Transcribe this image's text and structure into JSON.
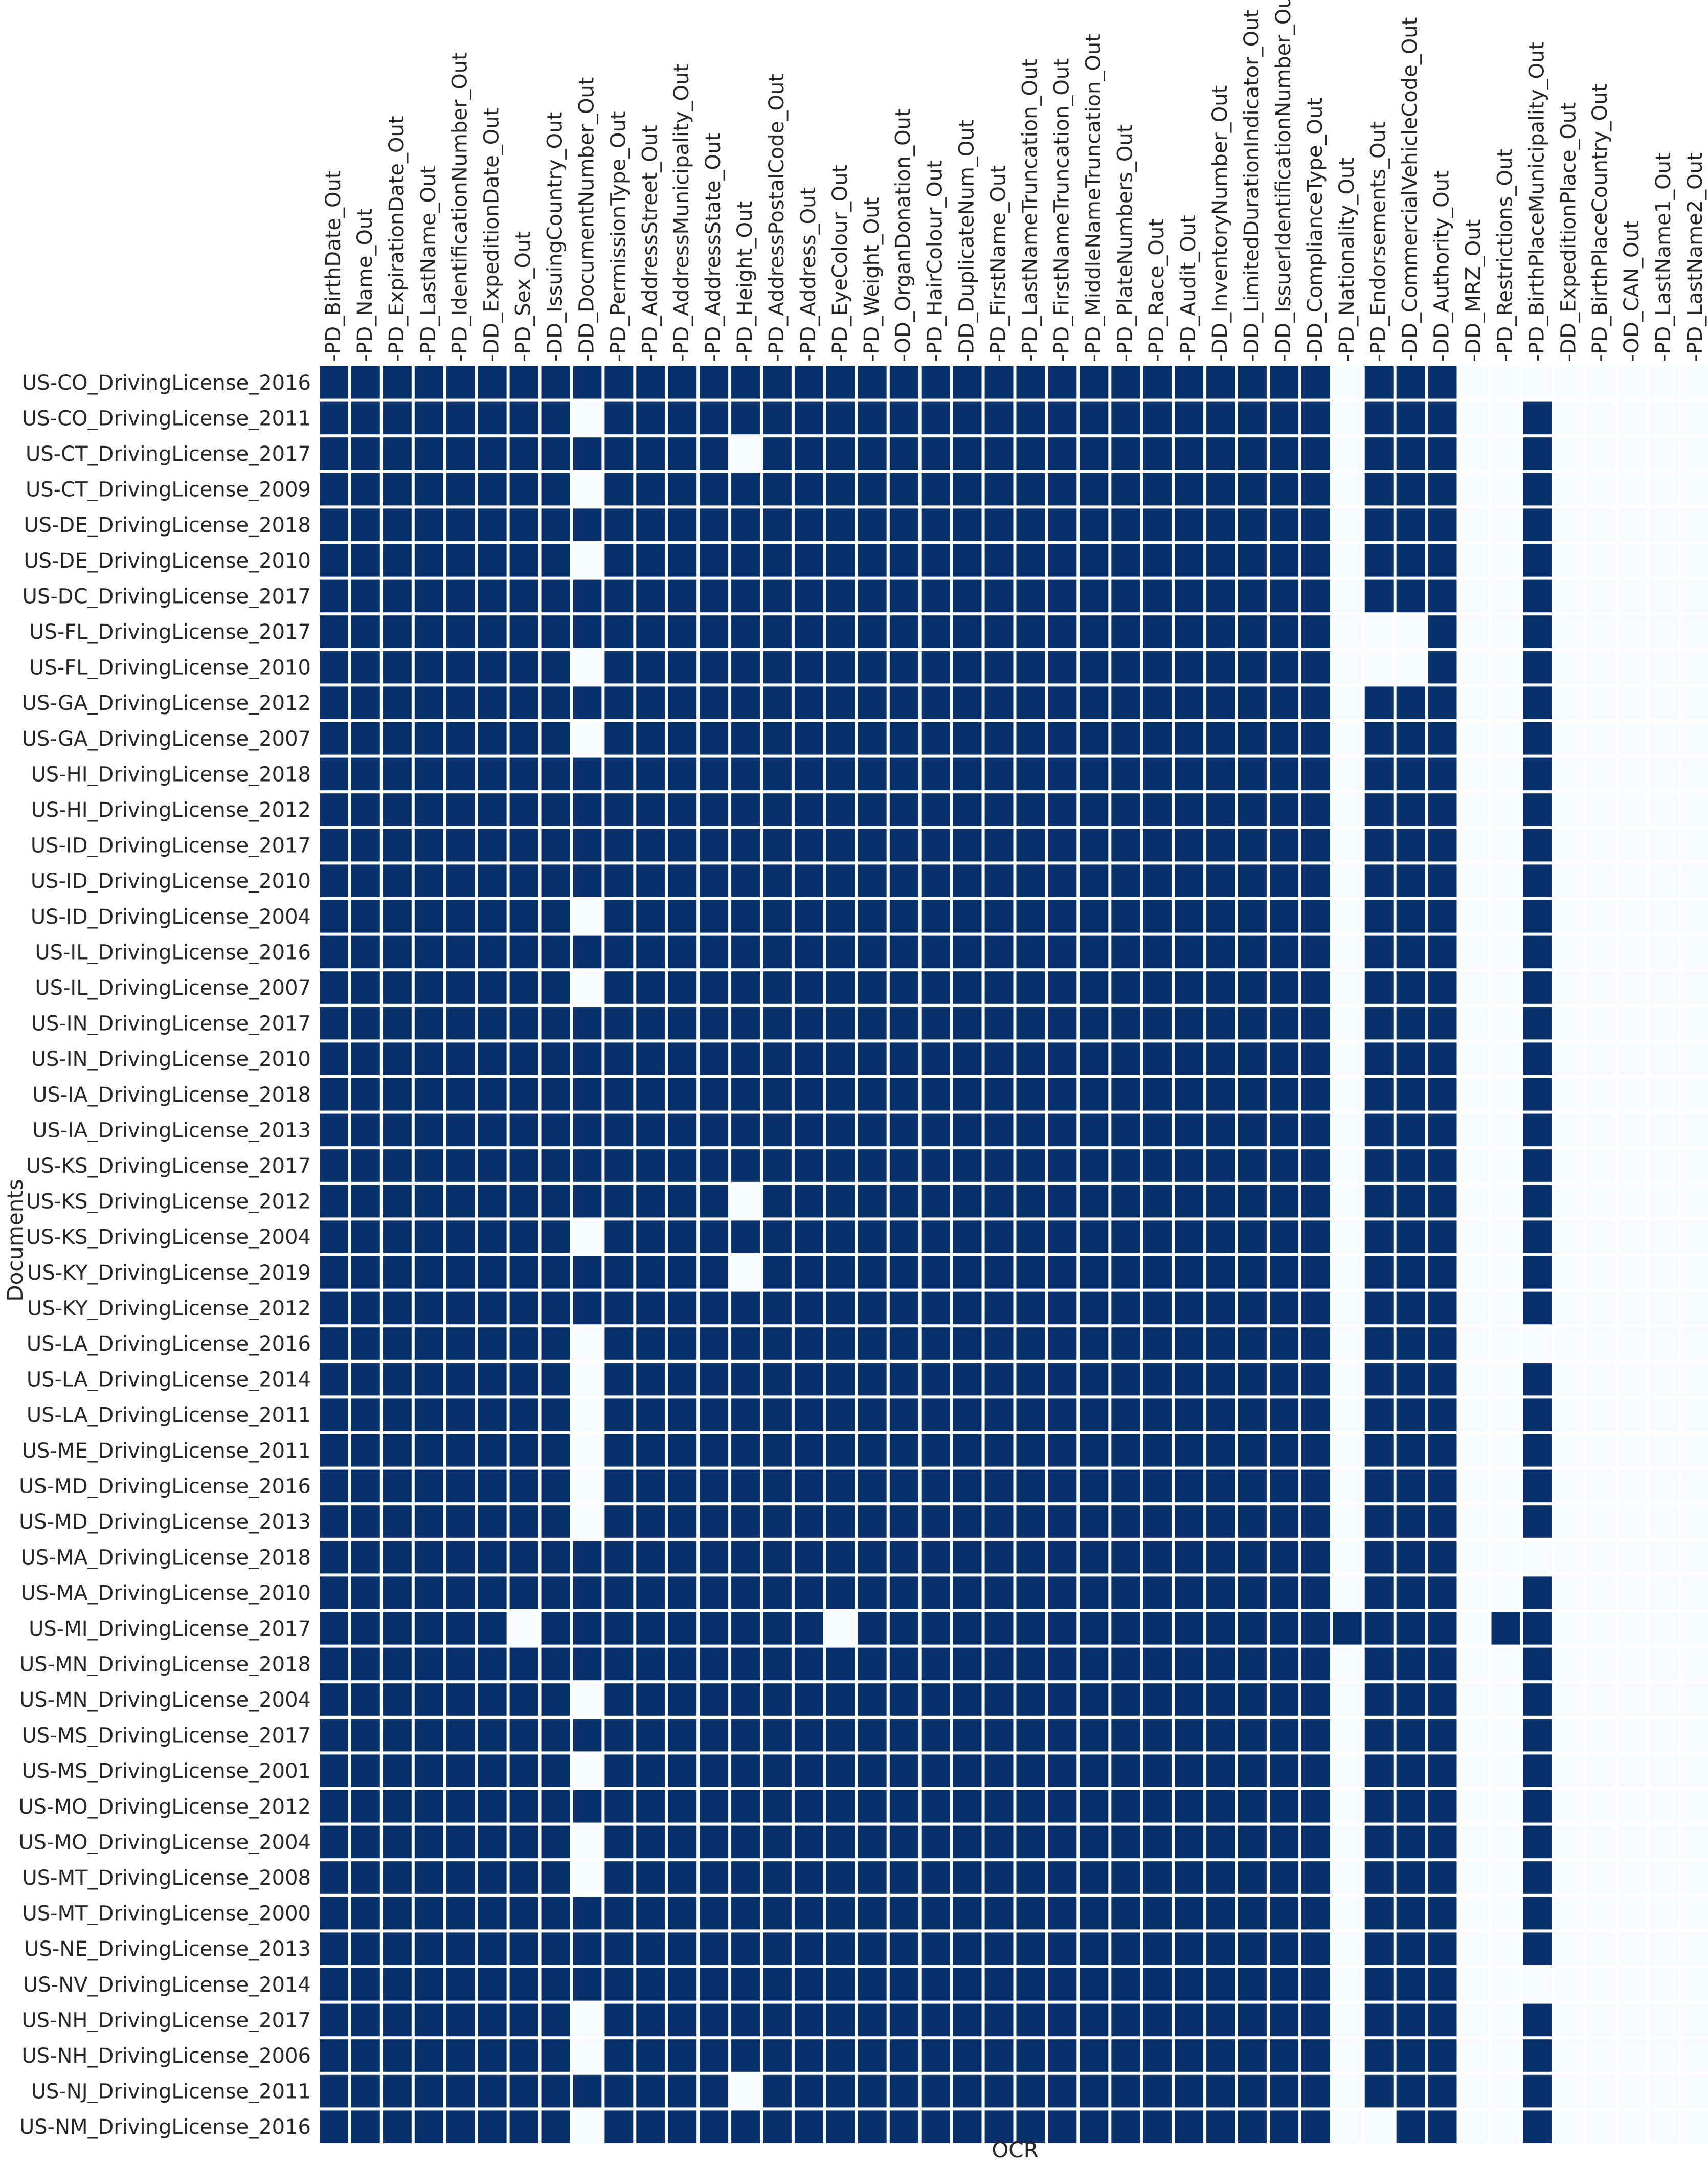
{
  "chart_data": {
    "type": "heatmap",
    "xlabel": "OCR",
    "ylabel": "Documents",
    "x_tick_prefix": "-",
    "colors": {
      "filled": "#08306b",
      "empty": "#f7fbff",
      "grid": "#ffffff"
    },
    "value_meaning": "1 = filled (dark), 0 = empty (light)",
    "columns": [
      "PD_BirthDate_Out",
      "PD_Name_Out",
      "PD_ExpirationDate_Out",
      "PD_LastName_Out",
      "PD_IdentificationNumber_Out",
      "DD_ExpeditionDate_Out",
      "PD_Sex_Out",
      "DD_IssuingCountry_Out",
      "DD_DocumentNumber_Out",
      "PD_PermissionType_Out",
      "PD_AddressStreet_Out",
      "PD_AddressMunicipality_Out",
      "PD_AddressState_Out",
      "PD_Height_Out",
      "PD_AddressPostalCode_Out",
      "PD_Address_Out",
      "PD_EyeColour_Out",
      "PD_Weight_Out",
      "OD_OrganDonation_Out",
      "PD_HairColour_Out",
      "DD_DuplicateNum_Out",
      "PD_FirstName_Out",
      "PD_LastNameTruncation_Out",
      "PD_FirstNameTruncation_Out",
      "PD_MiddleNameTruncation_Out",
      "PD_PlateNumbers_Out",
      "PD_Race_Out",
      "PD_Audit_Out",
      "DD_InventoryNumber_Out",
      "DD_LimitedDurationIndicator_Out",
      "DD_IssuerIdentificationNumber_Out",
      "DD_ComplianceType_Out",
      "PD_Nationality_Out",
      "PD_Endorsements_Out",
      "DD_CommercialVehicleCode_Out",
      "DD_Authority_Out",
      "DD_MRZ_Out",
      "PD_Restrictions_Out",
      "PD_BirthPlaceMunicipality_Out",
      "DD_ExpeditionPlace_Out",
      "PD_BirthPlaceCountry_Out",
      "OD_CAN_Out",
      "PD_LastName1_Out",
      "PD_LastName2_Out"
    ],
    "rows": [
      "US-CO_DrivingLicense_2016",
      "US-CO_DrivingLicense_2011",
      "US-CT_DrivingLicense_2017",
      "US-CT_DrivingLicense_2009",
      "US-DE_DrivingLicense_2018",
      "US-DE_DrivingLicense_2010",
      "US-DC_DrivingLicense_2017",
      "US-FL_DrivingLicense_2017",
      "US-FL_DrivingLicense_2010",
      "US-GA_DrivingLicense_2012",
      "US-GA_DrivingLicense_2007",
      "US-HI_DrivingLicense_2018",
      "US-HI_DrivingLicense_2012",
      "US-ID_DrivingLicense_2017",
      "US-ID_DrivingLicense_2010",
      "US-ID_DrivingLicense_2004",
      "US-IL_DrivingLicense_2016",
      "US-IL_DrivingLicense_2007",
      "US-IN_DrivingLicense_2017",
      "US-IN_DrivingLicense_2010",
      "US-IA_DrivingLicense_2018",
      "US-IA_DrivingLicense_2013",
      "US-KS_DrivingLicense_2017",
      "US-KS_DrivingLicense_2012",
      "US-KS_DrivingLicense_2004",
      "US-KY_DrivingLicense_2019",
      "US-KY_DrivingLicense_2012",
      "US-LA_DrivingLicense_2016",
      "US-LA_DrivingLicense_2014",
      "US-LA_DrivingLicense_2011",
      "US-ME_DrivingLicense_2011",
      "US-MD_DrivingLicense_2016",
      "US-MD_DrivingLicense_2013",
      "US-MA_DrivingLicense_2018",
      "US-MA_DrivingLicense_2010",
      "US-MI_DrivingLicense_2017",
      "US-MN_DrivingLicense_2018",
      "US-MN_DrivingLicense_2004",
      "US-MS_DrivingLicense_2017",
      "US-MS_DrivingLicense_2001",
      "US-MO_DrivingLicense_2012",
      "US-MO_DrivingLicense_2004",
      "US-MT_DrivingLicense_2008",
      "US-MT_DrivingLicense_2000",
      "US-NE_DrivingLicense_2013",
      "US-NV_DrivingLicense_2014",
      "US-NH_DrivingLicense_2017",
      "US-NH_DrivingLicense_2006",
      "US-NJ_DrivingLicense_2011",
      "US-NM_DrivingLicense_2016"
    ],
    "values": [
      "11111111111111111111111111111111011100000000",
      "11111111011111111111111111111111011100100000",
      "11111111111110111111111111111111011100100000",
      "11111111011111111111111111111111011100100000",
      "11111111111111111111111111111111011100100000",
      "11111111011111111111111111111111011100100000",
      "11111111111111111111111111111111011100100000",
      "11111111111111111111111111111111000100100000",
      "11111111011111111111111111111111000100100000",
      "11111111111111111111111111111111011100100000",
      "11111111011111111111111111111111011100100000",
      "11111111111111111111111111111111011100100000",
      "11111111111111111111111111111111011100100000",
      "11111111111111111111111111111111011100100000",
      "11111111111111111111111111111111011100100000",
      "11111111011111111111111111111111011100100000",
      "11111111111111111111111111111111011100100000",
      "11111111011111111111111111111111011100100000",
      "11111111111111111111111111111111011100100000",
      "11111111111111111111111111111111011100100000",
      "11111111111111111111111111111111011100100000",
      "11111111111111111111111111111111011100100000",
      "11111111111111111111111111111111011100100000",
      "11111111111110111111111111111111011100100000",
      "11111111011111111111111111111111011100100000",
      "11111111111110111111111111111111011100100000",
      "11111111111111111111111111111111011100100000",
      "11111111011111111111111111111111011100000000",
      "11111111011111111111111111111111011100100000",
      "11111111011111111111111111111111011100100000",
      "11111111011111111111111111111111011100100000",
      "11111111011111111111111111111111011100100000",
      "11111111011111111111111111111111011100100000",
      "11111111111111111111111111111111011100000000",
      "11111111111111111111111111111111011100100000",
      "11111101111111110111111111111111111101100000",
      "11111111111111111111111111111111011100100000",
      "11111111011111111111111111111111011100100000",
      "11111111111111111111111111111111011100100000",
      "11111111011111111111111111111111011100100000",
      "11111111111111111111111111111111011100100000",
      "11111111011111111111111111111111011100100000",
      "11111111011111111111111111111111011100100000",
      "11111111111111111111111111111111011100100000",
      "11111111111111111111111111111111011100100000",
      "11111111111111111111111111111111011100000000",
      "11111111011111111111111111111111011100100000",
      "11111111011111111111111111111111011100100000",
      "11111111111110111111111111111111011100100000",
      "11111111011111111111111111111111001100100000"
    ]
  }
}
